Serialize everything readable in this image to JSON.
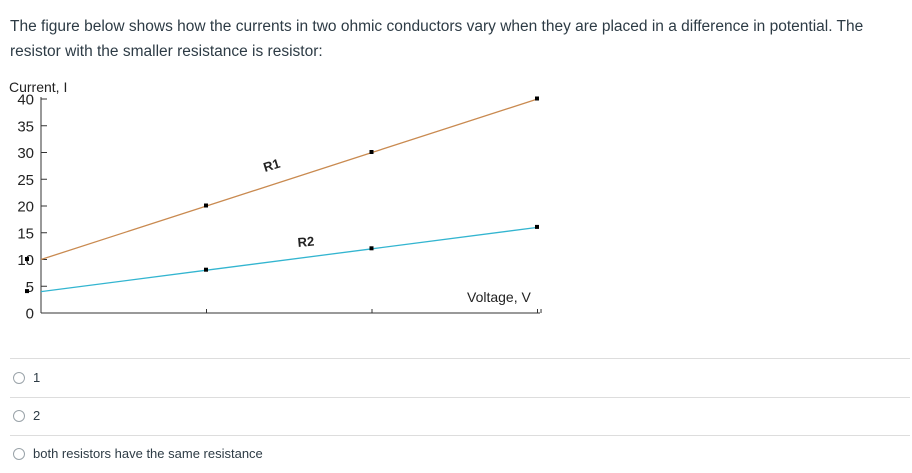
{
  "question": {
    "text": "The figure below shows how the currents in two ohmic conductors vary when they are placed in a difference in potential. The resistor with the smaller resistance is resistor:"
  },
  "chart_data": {
    "type": "line",
    "ylabel": "Current, I",
    "xlabel": "Voltage, V",
    "ylim": [
      0,
      40
    ],
    "yticks": [
      "0",
      "5",
      "10",
      "15",
      "20",
      "25",
      "30",
      "35",
      "40"
    ],
    "x": [
      0,
      1,
      2,
      3
    ],
    "series": [
      {
        "name": "R1",
        "values": [
          10,
          20,
          30,
          40
        ],
        "color": "#c98a50"
      },
      {
        "name": "R2",
        "values": [
          4,
          8,
          12,
          16
        ],
        "color": "#33b5d0"
      }
    ],
    "grid": false
  },
  "options": [
    {
      "label": "1"
    },
    {
      "label": "2"
    },
    {
      "label": "both resistors have the same resistance"
    }
  ]
}
